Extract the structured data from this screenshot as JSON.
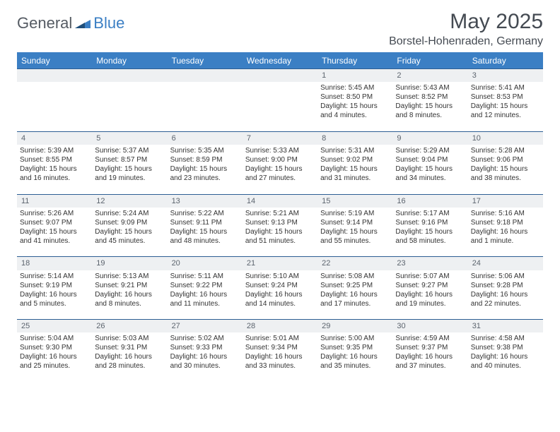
{
  "brand": {
    "general": "General",
    "blue": "Blue"
  },
  "title": {
    "month": "May 2025",
    "location": "Borstel-Hohenraden, Germany"
  },
  "colors": {
    "header_bg": "#3b7fc4",
    "header_text": "#ffffff",
    "daynum_bg": "#eef0f2",
    "rule": "#2c5e93",
    "text": "#333333",
    "title_text": "#444a52"
  },
  "weekdays": [
    "Sunday",
    "Monday",
    "Tuesday",
    "Wednesday",
    "Thursday",
    "Friday",
    "Saturday"
  ],
  "weeks": [
    {
      "nums": [
        "",
        "",
        "",
        "",
        "1",
        "2",
        "3"
      ],
      "cells": [
        null,
        null,
        null,
        null,
        {
          "sunrise": "Sunrise: 5:45 AM",
          "sunset": "Sunset: 8:50 PM",
          "day1": "Daylight: 15 hours",
          "day2": "and 4 minutes."
        },
        {
          "sunrise": "Sunrise: 5:43 AM",
          "sunset": "Sunset: 8:52 PM",
          "day1": "Daylight: 15 hours",
          "day2": "and 8 minutes."
        },
        {
          "sunrise": "Sunrise: 5:41 AM",
          "sunset": "Sunset: 8:53 PM",
          "day1": "Daylight: 15 hours",
          "day2": "and 12 minutes."
        }
      ]
    },
    {
      "nums": [
        "4",
        "5",
        "6",
        "7",
        "8",
        "9",
        "10"
      ],
      "cells": [
        {
          "sunrise": "Sunrise: 5:39 AM",
          "sunset": "Sunset: 8:55 PM",
          "day1": "Daylight: 15 hours",
          "day2": "and 16 minutes."
        },
        {
          "sunrise": "Sunrise: 5:37 AM",
          "sunset": "Sunset: 8:57 PM",
          "day1": "Daylight: 15 hours",
          "day2": "and 19 minutes."
        },
        {
          "sunrise": "Sunrise: 5:35 AM",
          "sunset": "Sunset: 8:59 PM",
          "day1": "Daylight: 15 hours",
          "day2": "and 23 minutes."
        },
        {
          "sunrise": "Sunrise: 5:33 AM",
          "sunset": "Sunset: 9:00 PM",
          "day1": "Daylight: 15 hours",
          "day2": "and 27 minutes."
        },
        {
          "sunrise": "Sunrise: 5:31 AM",
          "sunset": "Sunset: 9:02 PM",
          "day1": "Daylight: 15 hours",
          "day2": "and 31 minutes."
        },
        {
          "sunrise": "Sunrise: 5:29 AM",
          "sunset": "Sunset: 9:04 PM",
          "day1": "Daylight: 15 hours",
          "day2": "and 34 minutes."
        },
        {
          "sunrise": "Sunrise: 5:28 AM",
          "sunset": "Sunset: 9:06 PM",
          "day1": "Daylight: 15 hours",
          "day2": "and 38 minutes."
        }
      ]
    },
    {
      "nums": [
        "11",
        "12",
        "13",
        "14",
        "15",
        "16",
        "17"
      ],
      "cells": [
        {
          "sunrise": "Sunrise: 5:26 AM",
          "sunset": "Sunset: 9:07 PM",
          "day1": "Daylight: 15 hours",
          "day2": "and 41 minutes."
        },
        {
          "sunrise": "Sunrise: 5:24 AM",
          "sunset": "Sunset: 9:09 PM",
          "day1": "Daylight: 15 hours",
          "day2": "and 45 minutes."
        },
        {
          "sunrise": "Sunrise: 5:22 AM",
          "sunset": "Sunset: 9:11 PM",
          "day1": "Daylight: 15 hours",
          "day2": "and 48 minutes."
        },
        {
          "sunrise": "Sunrise: 5:21 AM",
          "sunset": "Sunset: 9:13 PM",
          "day1": "Daylight: 15 hours",
          "day2": "and 51 minutes."
        },
        {
          "sunrise": "Sunrise: 5:19 AM",
          "sunset": "Sunset: 9:14 PM",
          "day1": "Daylight: 15 hours",
          "day2": "and 55 minutes."
        },
        {
          "sunrise": "Sunrise: 5:17 AM",
          "sunset": "Sunset: 9:16 PM",
          "day1": "Daylight: 15 hours",
          "day2": "and 58 minutes."
        },
        {
          "sunrise": "Sunrise: 5:16 AM",
          "sunset": "Sunset: 9:18 PM",
          "day1": "Daylight: 16 hours",
          "day2": "and 1 minute."
        }
      ]
    },
    {
      "nums": [
        "18",
        "19",
        "20",
        "21",
        "22",
        "23",
        "24"
      ],
      "cells": [
        {
          "sunrise": "Sunrise: 5:14 AM",
          "sunset": "Sunset: 9:19 PM",
          "day1": "Daylight: 16 hours",
          "day2": "and 5 minutes."
        },
        {
          "sunrise": "Sunrise: 5:13 AM",
          "sunset": "Sunset: 9:21 PM",
          "day1": "Daylight: 16 hours",
          "day2": "and 8 minutes."
        },
        {
          "sunrise": "Sunrise: 5:11 AM",
          "sunset": "Sunset: 9:22 PM",
          "day1": "Daylight: 16 hours",
          "day2": "and 11 minutes."
        },
        {
          "sunrise": "Sunrise: 5:10 AM",
          "sunset": "Sunset: 9:24 PM",
          "day1": "Daylight: 16 hours",
          "day2": "and 14 minutes."
        },
        {
          "sunrise": "Sunrise: 5:08 AM",
          "sunset": "Sunset: 9:25 PM",
          "day1": "Daylight: 16 hours",
          "day2": "and 17 minutes."
        },
        {
          "sunrise": "Sunrise: 5:07 AM",
          "sunset": "Sunset: 9:27 PM",
          "day1": "Daylight: 16 hours",
          "day2": "and 19 minutes."
        },
        {
          "sunrise": "Sunrise: 5:06 AM",
          "sunset": "Sunset: 9:28 PM",
          "day1": "Daylight: 16 hours",
          "day2": "and 22 minutes."
        }
      ]
    },
    {
      "nums": [
        "25",
        "26",
        "27",
        "28",
        "29",
        "30",
        "31"
      ],
      "cells": [
        {
          "sunrise": "Sunrise: 5:04 AM",
          "sunset": "Sunset: 9:30 PM",
          "day1": "Daylight: 16 hours",
          "day2": "and 25 minutes."
        },
        {
          "sunrise": "Sunrise: 5:03 AM",
          "sunset": "Sunset: 9:31 PM",
          "day1": "Daylight: 16 hours",
          "day2": "and 28 minutes."
        },
        {
          "sunrise": "Sunrise: 5:02 AM",
          "sunset": "Sunset: 9:33 PM",
          "day1": "Daylight: 16 hours",
          "day2": "and 30 minutes."
        },
        {
          "sunrise": "Sunrise: 5:01 AM",
          "sunset": "Sunset: 9:34 PM",
          "day1": "Daylight: 16 hours",
          "day2": "and 33 minutes."
        },
        {
          "sunrise": "Sunrise: 5:00 AM",
          "sunset": "Sunset: 9:35 PM",
          "day1": "Daylight: 16 hours",
          "day2": "and 35 minutes."
        },
        {
          "sunrise": "Sunrise: 4:59 AM",
          "sunset": "Sunset: 9:37 PM",
          "day1": "Daylight: 16 hours",
          "day2": "and 37 minutes."
        },
        {
          "sunrise": "Sunrise: 4:58 AM",
          "sunset": "Sunset: 9:38 PM",
          "day1": "Daylight: 16 hours",
          "day2": "and 40 minutes."
        }
      ]
    }
  ]
}
